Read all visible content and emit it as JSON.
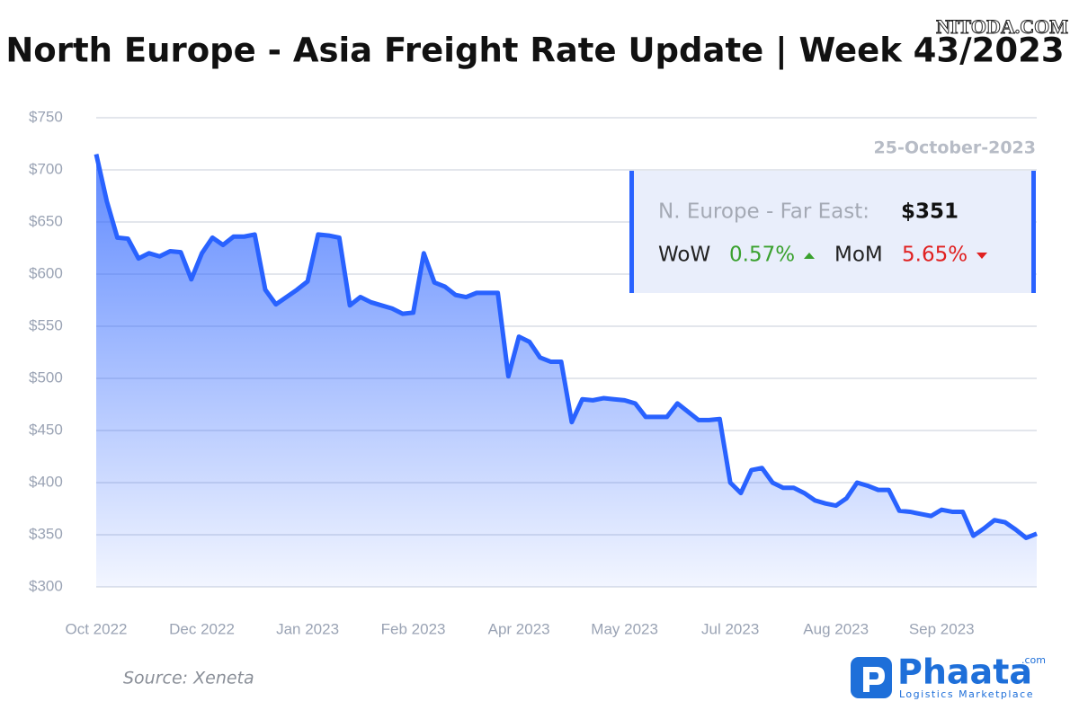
{
  "chart_data": {
    "type": "line",
    "title": "North Europe - Asia Freight Rate Update | Week 43/2023",
    "categories": [
      "Oct 2022",
      null,
      null,
      null,
      null,
      null,
      null,
      null,
      null,
      null,
      "Dec 2022",
      null,
      null,
      null,
      null,
      null,
      null,
      null,
      null,
      null,
      "Jan 2023",
      null,
      null,
      null,
      null,
      null,
      null,
      null,
      null,
      null,
      "Feb 2023",
      null,
      null,
      null,
      null,
      null,
      null,
      null,
      null,
      null,
      "Apr 2023",
      null,
      null,
      null,
      null,
      null,
      null,
      null,
      null,
      null,
      "May 2023",
      null,
      null,
      null,
      null,
      null,
      null,
      null,
      null,
      null,
      "Jul 2023",
      null,
      null,
      null,
      null,
      null,
      null,
      null,
      null,
      null,
      "Aug 2023",
      null,
      null,
      null,
      null,
      null,
      null,
      null,
      null,
      null,
      "Sep 2023",
      null,
      null,
      null,
      null,
      null,
      null,
      null,
      null,
      null
    ],
    "series": [
      {
        "name": "N. Europe - Far East",
        "color": "#2962ff",
        "values": [
          715,
          670,
          635,
          634,
          615,
          620,
          617,
          622,
          621,
          595,
          620,
          635,
          628,
          636,
          636,
          638,
          585,
          571,
          578,
          585,
          593,
          638,
          637,
          635,
          570,
          578,
          573,
          570,
          567,
          562,
          563,
          620,
          592,
          588,
          580,
          578,
          582,
          582,
          582,
          502,
          540,
          535,
          520,
          516,
          516,
          458,
          480,
          479,
          481,
          480,
          479,
          476,
          463,
          463,
          463,
          476,
          468,
          460,
          460,
          461,
          400,
          390,
          412,
          414,
          400,
          395,
          395,
          390,
          383,
          380,
          378,
          385,
          400,
          397,
          393,
          393,
          373,
          372,
          370,
          368,
          374,
          372,
          372,
          349,
          356,
          364,
          362,
          355,
          347,
          351
        ]
      }
    ],
    "ylim": [
      300,
      750
    ],
    "yticks": [
      {
        "value": 300,
        "label": "$300"
      },
      {
        "value": 350,
        "label": "$350"
      },
      {
        "value": 400,
        "label": "$400"
      },
      {
        "value": 450,
        "label": "$450"
      },
      {
        "value": 500,
        "label": "$500"
      },
      {
        "value": 550,
        "label": "$550"
      },
      {
        "value": 600,
        "label": "$600"
      },
      {
        "value": 650,
        "label": "$650"
      },
      {
        "value": 700,
        "label": "$700"
      },
      {
        "value": 750,
        "label": "$750"
      }
    ],
    "grid": true,
    "annotation": {
      "date": "25-October-2023",
      "route": "N. Europe - Far East:",
      "price": "$351",
      "wow_label": "WoW",
      "wow": "0.57%",
      "mom_label": "MoM",
      "mom": "5.65%"
    }
  },
  "source": "Source: Xeneta",
  "watermark": "NITODA.COM",
  "logo": {
    "name": "Phaata",
    "domain": ".com",
    "tagline": "Logistics Marketplace"
  }
}
